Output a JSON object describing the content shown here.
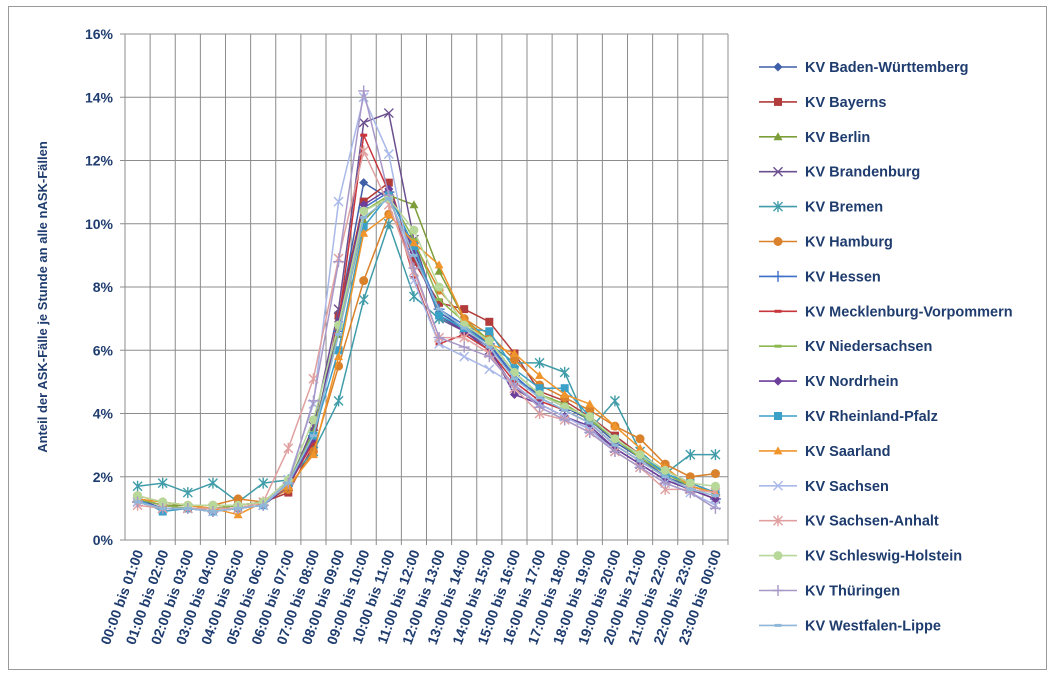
{
  "chart_data": {
    "type": "line",
    "title": "",
    "ylabel": "Anteil der ASK-Fälle je Stunde an alle nASK-Fällen",
    "xlabel": "",
    "ylim": [
      0,
      16
    ],
    "y_ticks": [
      "0%",
      "2%",
      "4%",
      "6%",
      "8%",
      "10%",
      "12%",
      "14%",
      "16%"
    ],
    "grid": true,
    "legend_position": "right",
    "categories": [
      "00:00 bis 01:00",
      "01:00 bis 02:00",
      "02:00 bis 03:00",
      "03:00 bis 04:00",
      "04:00 bis 05:00",
      "05:00 bis 06:00",
      "06:00 bis 07:00",
      "07:00 bis 08:00",
      "08:00 bis 09:00",
      "09:00 bis 10:00",
      "10:00 bis 11:00",
      "11:00 bis 12:00",
      "12:00 bis 13:00",
      "13:00 bis 14:00",
      "14:00 bis 15:00",
      "15:00 bis 16:00",
      "16:00 bis 17:00",
      "17:00 bis 18:00",
      "18:00 bis 19:00",
      "19:00 bis 20:00",
      "20:00 bis 21:00",
      "21:00 bis 22:00",
      "22:00 bis 23:00",
      "23:00 bis 00:00"
    ],
    "series": [
      {
        "name": "KV Baden-Württemberg",
        "color": "#3f5fa8",
        "marker": "diamond",
        "values": [
          1.3,
          1.0,
          1.0,
          0.9,
          1.0,
          1.1,
          1.7,
          3.2,
          7.0,
          11.3,
          10.8,
          9.0,
          7.2,
          6.7,
          6.2,
          5.1,
          4.6,
          4.2,
          3.8,
          3.1,
          2.6,
          2.0,
          1.7,
          1.5
        ]
      },
      {
        "name": "KV Bayerns",
        "color": "#b23b3b",
        "marker": "square",
        "values": [
          1.3,
          1.1,
          1.0,
          1.0,
          1.1,
          1.2,
          1.5,
          3.0,
          7.1,
          10.7,
          11.3,
          8.8,
          7.5,
          7.3,
          6.9,
          5.9,
          4.7,
          4.4,
          3.9,
          3.3,
          2.7,
          2.2,
          1.8,
          1.5
        ]
      },
      {
        "name": "KV Berlin",
        "color": "#7d9e3a",
        "marker": "triangle",
        "values": [
          1.3,
          1.1,
          1.1,
          1.0,
          1.1,
          1.2,
          1.8,
          3.5,
          6.5,
          10.1,
          10.9,
          10.6,
          8.5,
          7.0,
          6.3,
          5.3,
          4.6,
          4.3,
          3.8,
          3.2,
          2.6,
          2.1,
          1.7,
          1.5
        ]
      },
      {
        "name": "KV Brandenburg",
        "color": "#6b4f8f",
        "marker": "x",
        "values": [
          1.2,
          1.0,
          1.0,
          1.0,
          1.0,
          1.1,
          1.7,
          3.6,
          7.3,
          13.2,
          13.5,
          9.5,
          7.0,
          6.6,
          6.0,
          4.8,
          4.3,
          3.9,
          3.5,
          2.9,
          2.4,
          1.9,
          1.6,
          1.3
        ]
      },
      {
        "name": "KV Bremen",
        "color": "#3f9ca8",
        "marker": "star",
        "values": [
          1.7,
          1.8,
          1.5,
          1.8,
          1.2,
          1.8,
          1.9,
          2.8,
          4.4,
          7.6,
          10.0,
          7.7,
          7.0,
          6.7,
          6.2,
          5.6,
          5.6,
          5.3,
          3.5,
          4.4,
          2.8,
          2.1,
          2.7,
          2.7
        ]
      },
      {
        "name": "KV Hamburg",
        "color": "#d9822b",
        "marker": "circle",
        "values": [
          1.4,
          1.2,
          1.1,
          1.1,
          1.3,
          1.2,
          1.6,
          2.8,
          5.5,
          8.2,
          10.3,
          9.4,
          7.9,
          7.0,
          6.5,
          5.7,
          4.9,
          4.5,
          4.1,
          3.6,
          3.2,
          2.4,
          2.0,
          2.1
        ]
      },
      {
        "name": "KV Hessen",
        "color": "#3f6fc8",
        "marker": "plus",
        "values": [
          1.2,
          1.0,
          1.0,
          0.9,
          1.0,
          1.1,
          1.8,
          3.3,
          6.6,
          10.5,
          11.0,
          9.2,
          7.3,
          6.8,
          6.2,
          5.2,
          4.5,
          4.1,
          3.7,
          3.0,
          2.5,
          2.0,
          1.6,
          1.3
        ]
      },
      {
        "name": "KV Mecklenburg-Vorpommern",
        "color": "#c8353b",
        "marker": "dash",
        "values": [
          1.3,
          1.1,
          1.0,
          1.0,
          1.1,
          1.2,
          1.7,
          3.1,
          6.9,
          12.8,
          11.0,
          8.3,
          6.2,
          6.5,
          6.0,
          5.0,
          4.4,
          4.1,
          3.7,
          3.0,
          2.5,
          2.0,
          1.6,
          1.3
        ]
      },
      {
        "name": "KV Niedersachsen",
        "color": "#8db84f",
        "marker": "dash",
        "values": [
          1.3,
          1.1,
          1.0,
          1.0,
          1.1,
          1.2,
          1.8,
          3.4,
          6.7,
          10.4,
          10.9,
          9.5,
          7.6,
          6.9,
          6.3,
          5.3,
          4.6,
          4.3,
          3.8,
          3.2,
          2.6,
          2.1,
          1.7,
          1.5
        ]
      },
      {
        "name": "KV Nordrhein",
        "color": "#6b3f9a",
        "marker": "diamond",
        "values": [
          1.2,
          1.0,
          1.0,
          0.9,
          1.0,
          1.1,
          1.7,
          3.2,
          6.9,
          10.6,
          11.1,
          9.1,
          7.1,
          6.6,
          6.1,
          4.6,
          4.3,
          3.9,
          3.6,
          2.9,
          2.4,
          1.9,
          1.6,
          1.3
        ]
      },
      {
        "name": "KV Rheinland-Pfalz",
        "color": "#3aa0c8",
        "marker": "square",
        "values": [
          1.3,
          0.9,
          1.0,
          0.9,
          1.0,
          1.1,
          1.8,
          3.3,
          6.0,
          9.9,
          10.9,
          9.3,
          7.1,
          6.7,
          6.6,
          5.4,
          4.8,
          4.8,
          3.9,
          3.2,
          2.7,
          2.1,
          1.8,
          1.5
        ]
      },
      {
        "name": "KV Saarland",
        "color": "#f0952b",
        "marker": "triangle",
        "values": [
          1.3,
          1.2,
          1.1,
          1.0,
          0.8,
          1.2,
          1.7,
          2.7,
          5.8,
          9.7,
          10.3,
          9.4,
          8.7,
          7.0,
          6.2,
          5.9,
          5.2,
          4.6,
          4.3,
          3.6,
          2.9,
          2.3,
          1.7,
          1.5
        ]
      },
      {
        "name": "KV Sachsen",
        "color": "#a8b8e8",
        "marker": "x",
        "values": [
          1.2,
          1.0,
          1.0,
          0.9,
          1.0,
          1.1,
          1.9,
          4.3,
          10.7,
          14.0,
          12.2,
          8.2,
          6.2,
          5.8,
          5.4,
          4.9,
          4.3,
          3.9,
          3.5,
          2.8,
          2.3,
          1.8,
          1.5,
          1.1
        ]
      },
      {
        "name": "KV Sachsen-Anhalt",
        "color": "#e0a0a0",
        "marker": "star",
        "values": [
          1.1,
          1.0,
          1.0,
          1.0,
          1.0,
          1.2,
          2.9,
          5.1,
          8.9,
          12.3,
          10.6,
          8.5,
          6.4,
          6.4,
          5.9,
          4.8,
          4.0,
          3.8,
          3.4,
          2.8,
          2.3,
          1.6,
          1.6,
          1.5
        ]
      },
      {
        "name": "KV Schleswig-Holstein",
        "color": "#b8d89a",
        "marker": "circle",
        "values": [
          1.4,
          1.2,
          1.1,
          1.1,
          1.1,
          1.2,
          1.9,
          3.8,
          6.8,
          10.4,
          10.8,
          9.8,
          8.0,
          6.8,
          6.3,
          5.3,
          4.6,
          4.2,
          3.9,
          3.2,
          2.7,
          2.2,
          1.8,
          1.7
        ]
      },
      {
        "name": "KV Thüringen",
        "color": "#a898c8",
        "marker": "plus",
        "values": [
          1.2,
          1.0,
          1.0,
          0.9,
          1.0,
          1.1,
          1.8,
          4.4,
          8.8,
          14.2,
          10.9,
          8.6,
          6.4,
          6.1,
          5.8,
          4.9,
          4.2,
          3.8,
          3.4,
          2.8,
          2.3,
          1.8,
          1.5,
          1.0
        ]
      },
      {
        "name": "KV Westfalen-Lippe",
        "color": "#8fb8d8",
        "marker": "dash",
        "values": [
          1.2,
          1.0,
          1.0,
          0.9,
          1.0,
          1.1,
          1.8,
          3.3,
          6.5,
          10.2,
          10.8,
          9.0,
          7.3,
          6.7,
          6.1,
          5.1,
          4.5,
          4.1,
          3.7,
          3.0,
          2.5,
          2.0,
          1.6,
          1.4
        ]
      }
    ]
  }
}
